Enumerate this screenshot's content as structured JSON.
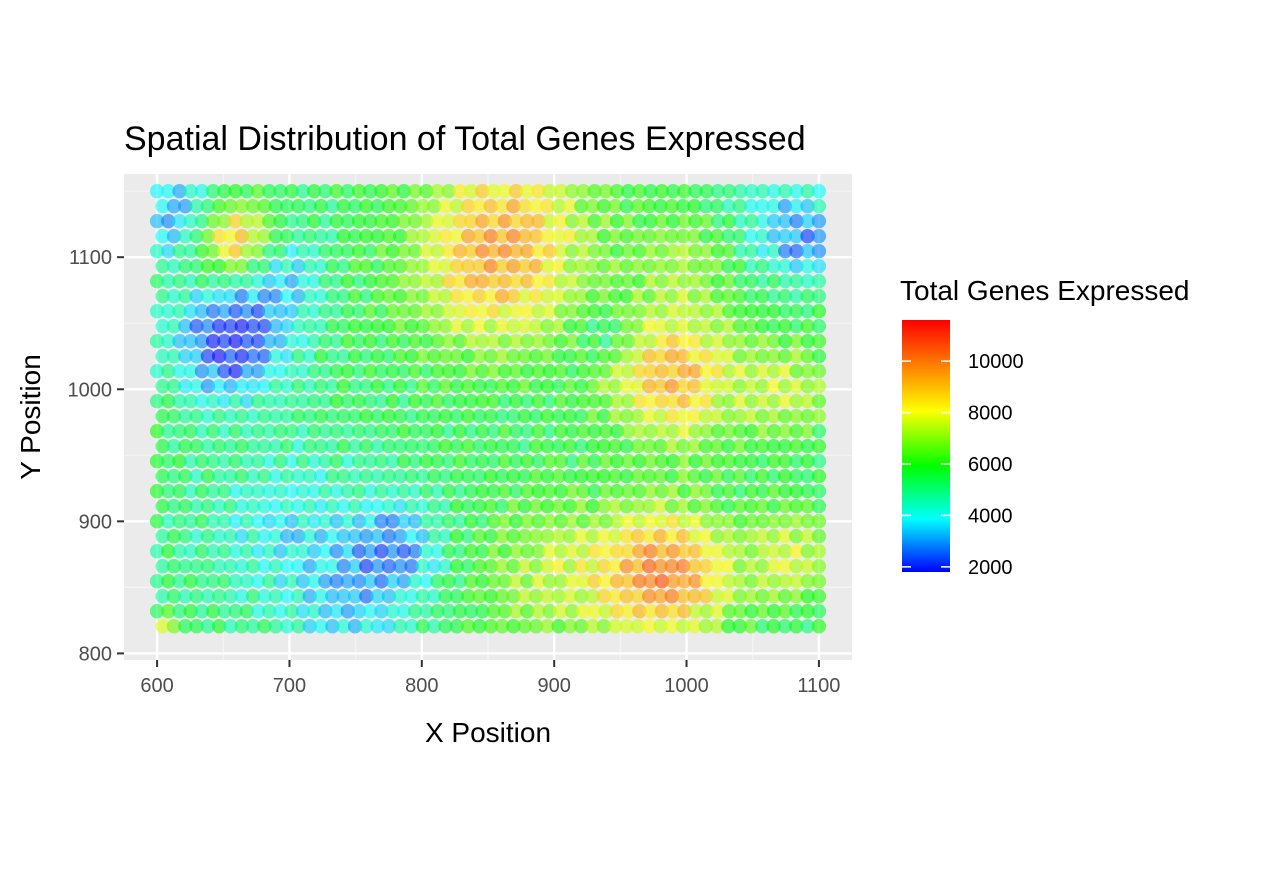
{
  "chart_data": {
    "type": "scatter",
    "title": "Spatial Distribution of Total Genes Expressed",
    "xlabel": "X Position",
    "ylabel": "Y Position",
    "xlim": [
      575,
      1125
    ],
    "ylim": [
      795,
      1163
    ],
    "x_ticks": [
      600,
      700,
      800,
      900,
      1000,
      1100
    ],
    "y_ticks": [
      800,
      900,
      1000,
      1100
    ],
    "x_tick_labels": [
      "600",
      "700",
      "800",
      "900",
      "1000",
      "1100"
    ],
    "y_tick_labels": [
      "800",
      "900",
      "1000",
      "1100"
    ],
    "grid": true,
    "legend": {
      "title": "Total Genes Expressed",
      "placement": "right",
      "type": "continuous-colorbar",
      "min": 1800,
      "max": 11600,
      "ticks": [
        2000,
        4000,
        6000,
        8000,
        10000
      ],
      "tick_labels": [
        "2000",
        "4000",
        "6000",
        "8000",
        "10000"
      ],
      "colors": [
        "#0000ff",
        "#00ffff",
        "#00ff00",
        "#ffff00",
        "#ff0000"
      ]
    },
    "point_alpha": 0.6,
    "colors": {
      "panel": "#ebebeb",
      "grid_major": "#ffffff",
      "grid_minor": "#f5f5f5",
      "tick": "#333333"
    },
    "grid_layout": {
      "x_start": 600,
      "x_step": 8.46,
      "y_start": 1150,
      "y_step": 11.36,
      "row_lengths": [
        60,
        59,
        60,
        59,
        60,
        59,
        60,
        59,
        60,
        59,
        60,
        59,
        60,
        59,
        60,
        59,
        60,
        59,
        60,
        59,
        60,
        59,
        60,
        59,
        60,
        59,
        60,
        59,
        60,
        59
      ],
      "value_field_note": "grid points"
    },
    "value_model": {
      "base": 5400,
      "hotspots": [
        {
          "x": 655,
          "y": 1035,
          "sigma": 30,
          "amp": -3700
        },
        {
          "x": 690,
          "y": 1090,
          "sigma": 25,
          "amp": -2000
        },
        {
          "x": 610,
          "y": 1130,
          "sigma": 25,
          "amp": -2400
        },
        {
          "x": 660,
          "y": 1112,
          "sigma": 20,
          "amp": 4500
        },
        {
          "x": 700,
          "y": 890,
          "sigma": 50,
          "amp": -1500
        },
        {
          "x": 780,
          "y": 880,
          "sigma": 25,
          "amp": -2300
        },
        {
          "x": 850,
          "y": 1085,
          "sigma": 45,
          "amp": 2800
        },
        {
          "x": 870,
          "y": 1135,
          "sigma": 45,
          "amp": 2200
        },
        {
          "x": 990,
          "y": 1010,
          "sigma": 35,
          "amp": 3800
        },
        {
          "x": 985,
          "y": 860,
          "sigma": 35,
          "amp": 4600
        },
        {
          "x": 900,
          "y": 860,
          "sigma": 40,
          "amp": 1900
        },
        {
          "x": 1075,
          "y": 1000,
          "sigma": 25,
          "amp": 2000
        },
        {
          "x": 1080,
          "y": 875,
          "sigma": 25,
          "amp": 2200
        },
        {
          "x": 1065,
          "y": 1130,
          "sigma": 30,
          "amp": -1500
        },
        {
          "x": 1095,
          "y": 1110,
          "sigma": 20,
          "amp": -2000
        },
        {
          "x": 750,
          "y": 830,
          "sigma": 30,
          "amp": -1500
        },
        {
          "x": 940,
          "y": 1040,
          "sigma": 15,
          "amp": -1400
        },
        {
          "x": 1000,
          "y": 1100,
          "sigma": 30,
          "amp": 1500
        },
        {
          "x": 600,
          "y": 812,
          "sigma": 10,
          "amp": 4500
        }
      ]
    }
  }
}
